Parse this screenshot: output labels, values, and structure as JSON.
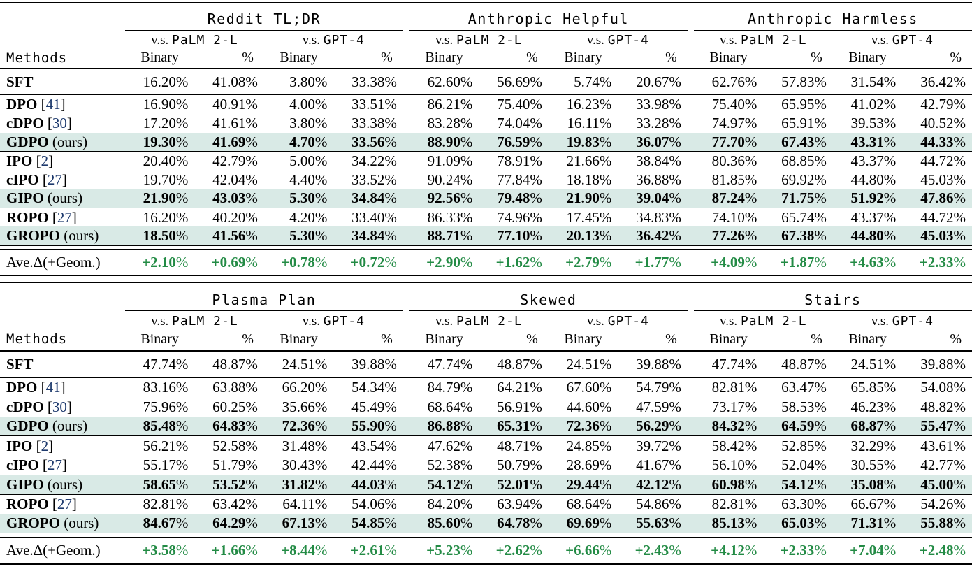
{
  "colors": {
    "highlight_row": "#d9eae6",
    "positive_delta_green": "#238b45",
    "citation_blue": "#1e3a6d",
    "rule_black": "#000000"
  },
  "labels": {
    "methods": "Methods",
    "vs_prefix": "v.s.",
    "palm_model": "PaLM 2-L",
    "gpt_model": "GPT-4",
    "binary": "Binary",
    "percent": "%",
    "ours_suffix": "(ours)",
    "cite_open": "[",
    "cite_close": "]",
    "ave_label": "Ave.Δ(+Geom.)"
  },
  "tables": [
    {
      "id": "table-top",
      "datasets": [
        "Reddit TL;DR",
        "Anthropic Helpful",
        "Anthropic Harmless"
      ],
      "blocks": [
        [
          {
            "m": "SFT",
            "v": [
              "16.20",
              "41.08",
              "3.80",
              "33.38",
              "62.60",
              "56.69",
              "5.74",
              "20.67",
              "62.76",
              "57.83",
              "31.54",
              "36.42"
            ]
          }
        ],
        [
          {
            "m": "DPO",
            "cite": "41",
            "v": [
              "16.90",
              "40.91",
              "4.00",
              "33.51",
              "86.21",
              "75.40",
              "16.23",
              "33.98",
              "75.40",
              "65.95",
              "41.02",
              "42.79"
            ]
          },
          {
            "m": "cDPO",
            "cite": "30",
            "v": [
              "17.20",
              "41.61",
              "3.80",
              "33.38",
              "83.28",
              "74.04",
              "16.11",
              "33.28",
              "74.97",
              "65.91",
              "39.53",
              "40.52"
            ]
          },
          {
            "m": "GDPO",
            "ours": true,
            "emph": true,
            "hl": true,
            "v": [
              "19.30",
              "41.69",
              "4.70",
              "33.56",
              "88.90",
              "76.59",
              "19.83",
              "36.07",
              "77.70",
              "67.43",
              "43.31",
              "44.33"
            ]
          }
        ],
        [
          {
            "m": "IPO",
            "cite": "2",
            "v": [
              "20.40",
              "42.79",
              "5.00",
              "34.22",
              "91.09",
              "78.91",
              "21.66",
              "38.84",
              "80.36",
              "68.85",
              "43.37",
              "44.72"
            ]
          },
          {
            "m": "cIPO",
            "cite": "27",
            "v": [
              "19.70",
              "42.04",
              "4.40",
              "33.52",
              "90.24",
              "77.84",
              "18.18",
              "36.88",
              "81.85",
              "69.92",
              "44.80",
              "45.03"
            ]
          },
          {
            "m": "GIPO",
            "ours": true,
            "emph": true,
            "hl": true,
            "v": [
              "21.90",
              "43.03",
              "5.30",
              "34.84",
              "92.56",
              "79.48",
              "21.90",
              "39.04",
              "87.24",
              "71.75",
              "51.92",
              "47.86"
            ]
          }
        ],
        [
          {
            "m": "ROPO",
            "cite": "27",
            "v": [
              "16.20",
              "40.20",
              "4.20",
              "33.40",
              "86.33",
              "74.96",
              "17.45",
              "34.83",
              "74.10",
              "65.74",
              "43.37",
              "44.72"
            ]
          },
          {
            "m": "GROPO",
            "ours": true,
            "emph": true,
            "hl": true,
            "v": [
              "18.50",
              "41.56",
              "5.30",
              "34.84",
              "88.71",
              "77.10",
              "20.13",
              "36.42",
              "77.26",
              "67.38",
              "44.80",
              "45.03"
            ]
          }
        ]
      ],
      "ave": [
        "+2.10",
        "+0.69",
        "+0.78",
        "+0.72",
        "+2.90",
        "+1.62",
        "+2.79",
        "+1.77",
        "+4.09",
        "+1.87",
        "+4.63",
        "+2.33"
      ]
    },
    {
      "id": "table-bottom",
      "datasets": [
        "Plasma Plan",
        "Skewed",
        "Stairs"
      ],
      "blocks": [
        [
          {
            "m": "SFT",
            "v": [
              "47.74",
              "48.87",
              "24.51",
              "39.88",
              "47.74",
              "48.87",
              "24.51",
              "39.88",
              "47.74",
              "48.87",
              "24.51",
              "39.88"
            ]
          }
        ],
        [
          {
            "m": "DPO",
            "cite": "41",
            "v": [
              "83.16",
              "63.88",
              "66.20",
              "54.34",
              "84.79",
              "64.21",
              "67.60",
              "54.79",
              "82.81",
              "63.47",
              "65.85",
              "54.08"
            ]
          },
          {
            "m": "cDPO",
            "cite": "30",
            "v": [
              "75.96",
              "60.25",
              "35.66",
              "45.49",
              "68.64",
              "56.91",
              "44.60",
              "47.59",
              "73.17",
              "58.53",
              "46.23",
              "48.82"
            ]
          },
          {
            "m": "GDPO",
            "ours": true,
            "emph": true,
            "hl": true,
            "v": [
              "85.48",
              "64.83",
              "72.36",
              "55.90",
              "86.88",
              "65.31",
              "72.36",
              "56.29",
              "84.32",
              "64.59",
              "68.87",
              "55.47"
            ]
          }
        ],
        [
          {
            "m": "IPO",
            "cite": "2",
            "v": [
              "56.21",
              "52.58",
              "31.48",
              "43.54",
              "47.62",
              "48.71",
              "24.85",
              "39.72",
              "58.42",
              "52.85",
              "32.29",
              "43.61"
            ]
          },
          {
            "m": "cIPO",
            "cite": "27",
            "v": [
              "55.17",
              "51.79",
              "30.43",
              "42.44",
              "52.38",
              "50.79",
              "28.69",
              "41.67",
              "56.10",
              "52.04",
              "30.55",
              "42.77"
            ]
          },
          {
            "m": "GIPO",
            "ours": true,
            "emph": true,
            "hl": true,
            "v": [
              "58.65",
              "53.52",
              "31.82",
              "44.03",
              "54.12",
              "52.01",
              "29.44",
              "42.12",
              "60.98",
              "54.12",
              "35.08",
              "45.00"
            ]
          }
        ],
        [
          {
            "m": "ROPO",
            "cite": "27",
            "v": [
              "82.81",
              "63.42",
              "64.11",
              "54.06",
              "84.20",
              "63.94",
              "68.64",
              "54.86",
              "82.81",
              "63.30",
              "66.67",
              "54.26"
            ]
          },
          {
            "m": "GROPO",
            "ours": true,
            "emph": true,
            "hl": true,
            "v": [
              "84.67",
              "64.29",
              "67.13",
              "54.85",
              "85.60",
              "64.78",
              "69.69",
              "55.63",
              "85.13",
              "65.03",
              "71.31",
              "55.88"
            ]
          }
        ]
      ],
      "ave": [
        "+3.58",
        "+1.66",
        "+8.44",
        "+2.61",
        "+5.23",
        "+2.62",
        "+6.66",
        "+2.43",
        "+4.12",
        "+2.33",
        "+7.04",
        "+2.48"
      ]
    }
  ]
}
